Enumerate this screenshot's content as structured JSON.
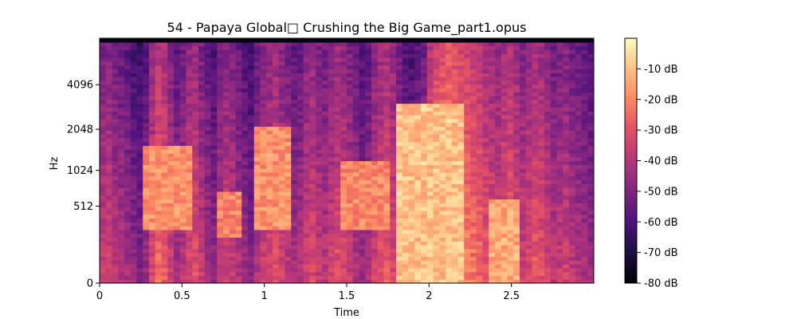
{
  "chart_data": {
    "type": "heatmap",
    "title": "54 - Papaya Global□ Crushing the Big Game_part1.opus",
    "xlabel": "Time",
    "ylabel": "Hz",
    "x_ticks": [
      {
        "value": 0,
        "label": "0"
      },
      {
        "value": 0.5,
        "label": "0.5"
      },
      {
        "value": 1,
        "label": "1"
      },
      {
        "value": 1.5,
        "label": "1.5"
      },
      {
        "value": 2,
        "label": "2"
      },
      {
        "value": 2.5,
        "label": "2.5"
      }
    ],
    "xlim": [
      0,
      3.0
    ],
    "y_scale": "log2 (mel)",
    "y_ticks": [
      {
        "value": 0,
        "label": "0"
      },
      {
        "value": 512,
        "label": "512"
      },
      {
        "value": 1024,
        "label": "1024"
      },
      {
        "value": 2048,
        "label": "2048"
      },
      {
        "value": 4096,
        "label": "4096"
      }
    ],
    "colorbar": {
      "colormap": "magma",
      "range_db": [
        -80,
        0
      ],
      "ticks": [
        {
          "value": -10,
          "label": "-10 dB"
        },
        {
          "value": -20,
          "label": "-20 dB"
        },
        {
          "value": -30,
          "label": "-30 dB"
        },
        {
          "value": -40,
          "label": "-40 dB"
        },
        {
          "value": -50,
          "label": "-50 dB"
        },
        {
          "value": -60,
          "label": "-60 dB"
        },
        {
          "value": -70,
          "label": "-70 dB"
        },
        {
          "value": -80,
          "label": "-80 dB"
        }
      ]
    },
    "column_energy_db": [
      -42,
      -40,
      -44,
      -46,
      -48,
      -52,
      -55,
      -50,
      -38,
      -30,
      -32,
      -40,
      -48,
      -44,
      -38,
      -36,
      -42,
      -48,
      -52,
      -44,
      -40,
      -42,
      -46,
      -50,
      -54,
      -46,
      -40,
      -38,
      -36,
      -40,
      -44,
      -48,
      -46,
      -40,
      -38,
      -42,
      -44,
      -40,
      -36,
      -38,
      -42,
      -46,
      -50,
      -48,
      -40,
      -36,
      -34,
      -38,
      -44,
      -50,
      -52,
      -48,
      -44,
      -30,
      -24,
      -22,
      -20,
      -22,
      -24,
      -26,
      -28,
      -30,
      -34,
      -36,
      -38,
      -34,
      -32,
      -36,
      -40,
      -38,
      -34,
      -36,
      -40,
      -44,
      -42,
      -40,
      -44,
      -46,
      -48,
      -50
    ],
    "formant_bands": [
      {
        "t0": 0.25,
        "t1": 0.55,
        "f0": 300,
        "f1": 1600,
        "level_db": -18
      },
      {
        "t0": 0.7,
        "t1": 0.85,
        "f0": 250,
        "f1": 700,
        "level_db": -20
      },
      {
        "t0": 0.95,
        "t1": 1.15,
        "f0": 300,
        "f1": 2200,
        "level_db": -18
      },
      {
        "t0": 1.45,
        "t1": 1.75,
        "f0": 300,
        "f1": 1200,
        "level_db": -20
      },
      {
        "t0": 1.8,
        "t1": 2.2,
        "f0": 0,
        "f1": 3000,
        "level_db": -10
      },
      {
        "t0": 2.35,
        "t1": 2.55,
        "f0": 0,
        "f1": 600,
        "level_db": -14
      }
    ]
  }
}
